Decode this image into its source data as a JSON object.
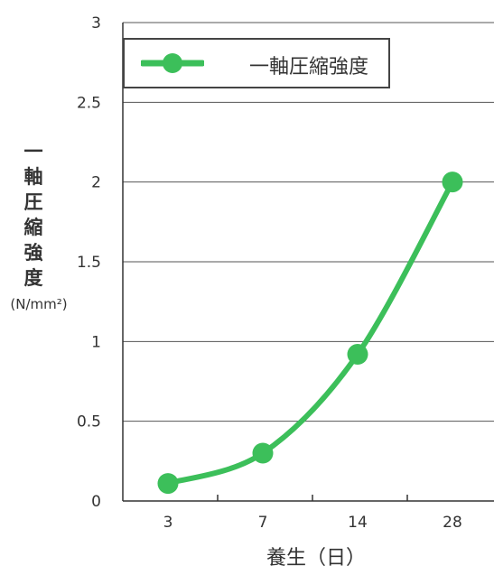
{
  "chart_data": {
    "type": "line",
    "categories": [
      "3",
      "7",
      "14",
      "28"
    ],
    "series": [
      {
        "name": "一軸圧縮強度",
        "values": [
          0.11,
          0.3,
          0.92,
          2.0
        ]
      }
    ],
    "ylim": [
      0,
      3
    ],
    "yticks": [
      "0",
      "0.5",
      "1",
      "1.5",
      "2",
      "2.5",
      "3"
    ],
    "ytick_values": [
      0,
      0.5,
      1,
      1.5,
      2,
      2.5,
      3
    ],
    "ylabel_chars": [
      "一",
      "軸",
      "圧",
      "縮",
      "強",
      "度"
    ],
    "ylabel_unit": "(N/mm²)",
    "xlabel": "養生（日）",
    "grid": true,
    "legend": "top-left",
    "series_color": "#3cbf5a"
  }
}
